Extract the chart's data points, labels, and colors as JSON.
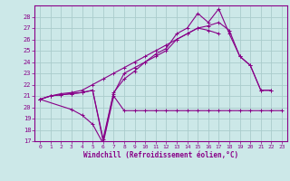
{
  "background_color": "#cce8e8",
  "grid_color": "#aacccc",
  "line_color": "#880088",
  "xlabel": "Windchill (Refroidissement éolien,°C)",
  "xlim": [
    -0.5,
    23.5
  ],
  "ylim": [
    17,
    29
  ],
  "yticks": [
    17,
    18,
    19,
    20,
    21,
    22,
    23,
    24,
    25,
    26,
    27,
    28
  ],
  "xticks": [
    0,
    1,
    2,
    3,
    4,
    5,
    6,
    7,
    8,
    9,
    10,
    11,
    12,
    13,
    14,
    15,
    16,
    17,
    18,
    19,
    20,
    21,
    22,
    23
  ],
  "series": [
    {
      "x": [
        0,
        1,
        2,
        3,
        4,
        5,
        6,
        7,
        8,
        9,
        10,
        11,
        12,
        13,
        14,
        15,
        16,
        17,
        18,
        19,
        20,
        21,
        22
      ],
      "y": [
        20.7,
        21.0,
        21.1,
        21.2,
        21.3,
        21.5,
        17.0,
        21.2,
        23.0,
        23.5,
        24.0,
        24.5,
        25.0,
        26.0,
        26.5,
        27.0,
        27.2,
        27.5,
        26.8,
        24.5,
        23.7,
        21.5,
        21.5
      ],
      "has_marker": true
    },
    {
      "x": [
        0,
        1,
        2,
        3,
        4,
        5,
        6,
        7,
        8,
        9,
        10,
        11,
        12,
        13,
        14,
        15,
        16,
        17,
        18,
        19,
        20,
        21,
        22
      ],
      "y": [
        20.7,
        21.0,
        21.1,
        21.2,
        21.3,
        21.5,
        17.2,
        21.3,
        22.5,
        23.2,
        24.0,
        24.7,
        25.2,
        26.5,
        27.0,
        28.3,
        27.5,
        28.7,
        26.5,
        24.5,
        23.7,
        21.5,
        21.5
      ],
      "has_marker": true
    },
    {
      "x": [
        0,
        1,
        2,
        3,
        4,
        5,
        6,
        7,
        8,
        9,
        10,
        11,
        12,
        13,
        14,
        15,
        16,
        17
      ],
      "y": [
        20.7,
        21.0,
        21.2,
        21.3,
        21.5,
        22.0,
        22.5,
        23.0,
        23.5,
        24.0,
        24.5,
        25.0,
        25.5,
        26.0,
        26.5,
        27.0,
        26.8,
        26.5
      ],
      "has_marker": true
    },
    {
      "x": [
        0,
        3,
        4,
        5,
        6,
        7,
        8,
        9,
        10,
        11,
        12,
        13,
        14,
        15,
        16,
        17,
        18,
        19,
        20,
        21,
        22,
        23
      ],
      "y": [
        20.7,
        19.8,
        19.3,
        18.5,
        16.8,
        21.0,
        19.7,
        19.7,
        19.7,
        19.7,
        19.7,
        19.7,
        19.7,
        19.7,
        19.7,
        19.7,
        19.7,
        19.7,
        19.7,
        19.7,
        19.7,
        19.7
      ],
      "has_marker": true
    }
  ]
}
